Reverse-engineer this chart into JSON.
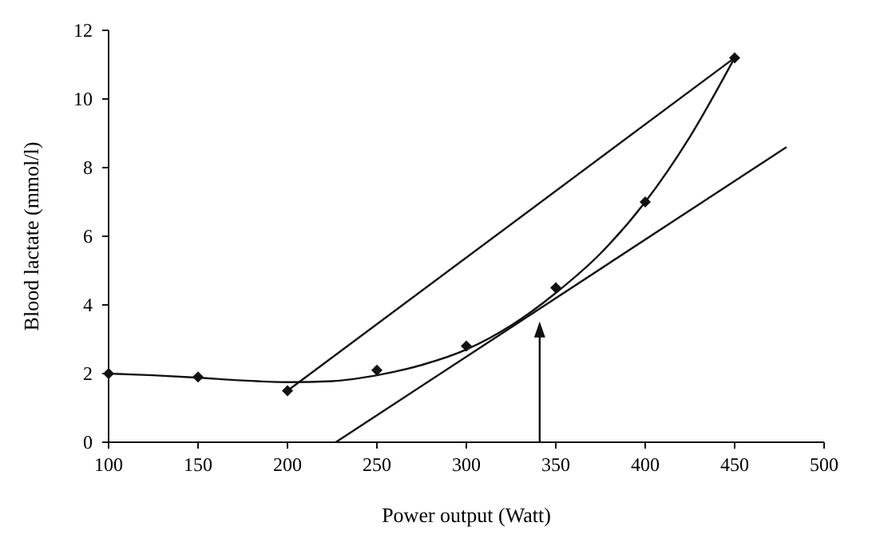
{
  "chart_data": {
    "type": "scatter",
    "xlabel": "Power output (Watt)",
    "ylabel": "Blood lactate (mmol/l)",
    "xlim": [
      100,
      500
    ],
    "ylim": [
      0,
      12
    ],
    "xticks": [
      100,
      150,
      200,
      250,
      300,
      350,
      400,
      450,
      500
    ],
    "yticks": [
      0,
      2,
      4,
      6,
      8,
      10,
      12
    ],
    "grid": false,
    "series": [
      {
        "color": "#111111",
        "marker": "diamond",
        "x": [
          100,
          150,
          200,
          250,
          300,
          350,
          400,
          450
        ],
        "values": [
          2,
          1.9,
          1.5,
          2.1,
          2.8,
          4.5,
          7,
          11.2
        ]
      },
      {
        "type": "line",
        "color": "#111111",
        "marker": "none",
        "x": [
          100,
          125,
          150,
          175,
          200,
          225,
          250,
          275,
          300,
          325,
          350,
          375,
          400,
          425,
          450
        ],
        "values": [
          2,
          1.95,
          1.88,
          1.8,
          1.75,
          1.78,
          1.95,
          2.25,
          2.7,
          3.4,
          4.35,
          5.5,
          7,
          8.9,
          11.2
        ]
      },
      {
        "type": "line",
        "color": "#111111",
        "marker": "none",
        "x": [
          200,
          450
        ],
        "values": [
          1.5,
          11.2
        ]
      },
      {
        "type": "line",
        "color": "#111111",
        "marker": "none",
        "x": [
          227,
          479
        ],
        "values": [
          0,
          8.6
        ]
      }
    ],
    "ref_lines": [
      {
        "axis": "x",
        "value": 341,
        "color": "#111111"
      }
    ]
  }
}
